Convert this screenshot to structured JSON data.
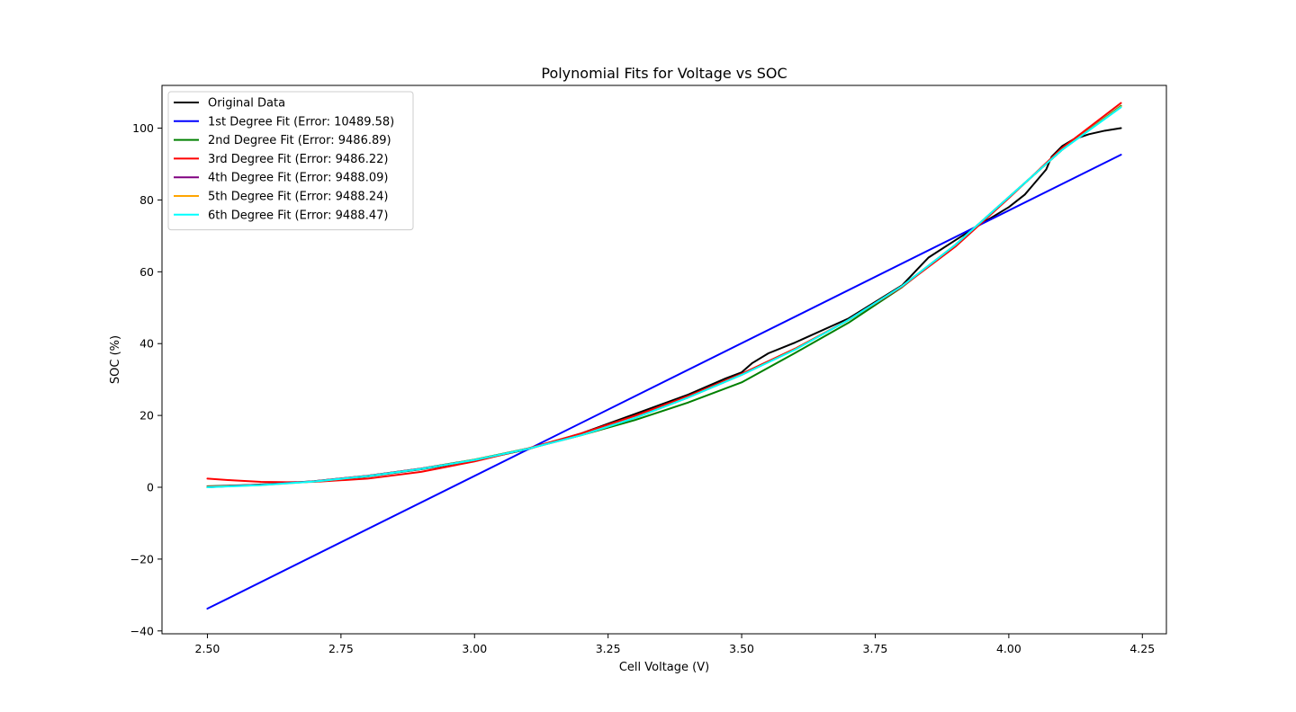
{
  "chart_data": {
    "type": "line",
    "title": "Polynomial Fits for Voltage vs SOC",
    "xlabel": "Cell Voltage (V)",
    "ylabel": "SOC (%)",
    "xlim": [
      2.415,
      4.295
    ],
    "ylim": [
      -40.8,
      111.9
    ],
    "xticks": [
      2.5,
      2.75,
      3.0,
      3.25,
      3.5,
      3.75,
      4.0,
      4.25
    ],
    "xtick_labels": [
      "2.50",
      "2.75",
      "3.00",
      "3.25",
      "3.50",
      "3.75",
      "4.00",
      "4.25"
    ],
    "yticks": [
      -40,
      -20,
      0,
      20,
      40,
      60,
      80,
      100
    ],
    "ytick_labels": [
      "−40",
      "−20",
      "0",
      "20",
      "40",
      "60",
      "80",
      "100"
    ],
    "grid": false,
    "legend_position": "top-left",
    "series": [
      {
        "name": "Original Data",
        "color": "#000000",
        "points": [
          [
            2.5,
            0.0
          ],
          [
            2.6,
            0.8
          ],
          [
            2.7,
            1.6
          ],
          [
            2.8,
            3.0
          ],
          [
            2.9,
            5.0
          ],
          [
            3.0,
            7.4
          ],
          [
            3.1,
            10.6
          ],
          [
            3.2,
            15.0
          ],
          [
            3.3,
            20.4
          ],
          [
            3.4,
            25.8
          ],
          [
            3.47,
            30.3
          ],
          [
            3.5,
            32.0
          ],
          [
            3.52,
            34.6
          ],
          [
            3.55,
            37.3
          ],
          [
            3.6,
            40.3
          ],
          [
            3.7,
            47.0
          ],
          [
            3.8,
            56.2
          ],
          [
            3.85,
            64.0
          ],
          [
            3.9,
            68.8
          ],
          [
            3.95,
            73.5
          ],
          [
            4.0,
            78.0
          ],
          [
            4.03,
            81.5
          ],
          [
            4.05,
            85.0
          ],
          [
            4.07,
            88.5
          ],
          [
            4.08,
            92.0
          ],
          [
            4.1,
            95.0
          ],
          [
            4.12,
            96.8
          ],
          [
            4.15,
            98.3
          ],
          [
            4.18,
            99.3
          ],
          [
            4.21,
            100.0
          ]
        ]
      },
      {
        "name": "1st Degree Fit (Error: 10489.58)",
        "color": "#0000ff",
        "points": [
          [
            2.5,
            -33.8
          ],
          [
            4.21,
            92.6
          ]
        ]
      },
      {
        "name": "2nd Degree Fit (Error: 9486.89)",
        "color": "#008000",
        "points": [
          [
            2.5,
            0.3
          ],
          [
            2.6,
            0.7
          ],
          [
            2.7,
            1.7
          ],
          [
            2.8,
            3.2
          ],
          [
            2.9,
            5.2
          ],
          [
            3.0,
            7.7
          ],
          [
            3.1,
            10.8
          ],
          [
            3.2,
            14.5
          ],
          [
            3.3,
            18.7
          ],
          [
            3.4,
            23.6
          ],
          [
            3.5,
            29.2
          ],
          [
            3.6,
            37.4
          ],
          [
            3.7,
            45.8
          ],
          [
            3.8,
            55.7
          ],
          [
            3.9,
            67.5
          ],
          [
            4.0,
            80.7
          ],
          [
            4.1,
            94.0
          ],
          [
            4.21,
            106.2
          ]
        ]
      },
      {
        "name": "3rd Degree Fit (Error: 9486.22)",
        "color": "#ff0000",
        "points": [
          [
            2.5,
            2.4
          ],
          [
            2.55,
            1.9
          ],
          [
            2.6,
            1.5
          ],
          [
            2.65,
            1.4
          ],
          [
            2.7,
            1.5
          ],
          [
            2.8,
            2.4
          ],
          [
            2.9,
            4.3
          ],
          [
            3.0,
            7.2
          ],
          [
            3.1,
            10.8
          ],
          [
            3.2,
            15.0
          ],
          [
            3.3,
            19.9
          ],
          [
            3.4,
            25.4
          ],
          [
            3.5,
            31.6
          ],
          [
            3.6,
            38.6
          ],
          [
            3.7,
            46.6
          ],
          [
            3.8,
            55.8
          ],
          [
            3.9,
            67.0
          ],
          [
            4.0,
            80.5
          ],
          [
            4.1,
            94.5
          ],
          [
            4.21,
            107.0
          ]
        ]
      },
      {
        "name": "4th Degree Fit (Error: 9488.09)",
        "color": "#800080",
        "points": [
          [
            2.5,
            0.2
          ],
          [
            2.6,
            0.7
          ],
          [
            2.7,
            1.7
          ],
          [
            2.8,
            3.2
          ],
          [
            2.9,
            5.2
          ],
          [
            3.0,
            7.6
          ],
          [
            3.1,
            10.7
          ],
          [
            3.2,
            14.5
          ],
          [
            3.3,
            19.3
          ],
          [
            3.4,
            25.0
          ],
          [
            3.5,
            31.3
          ],
          [
            3.6,
            38.4
          ],
          [
            3.7,
            46.6
          ],
          [
            3.8,
            56.0
          ],
          [
            3.9,
            67.5
          ],
          [
            4.0,
            80.8
          ],
          [
            4.1,
            94.0
          ],
          [
            4.21,
            106.0
          ]
        ]
      },
      {
        "name": "5th Degree Fit (Error: 9488.24)",
        "color": "#ffa500",
        "points": [
          [
            2.5,
            0.1
          ],
          [
            2.6,
            0.6
          ],
          [
            2.7,
            1.6
          ],
          [
            2.8,
            3.1
          ],
          [
            2.9,
            5.1
          ],
          [
            3.0,
            7.6
          ],
          [
            3.1,
            10.7
          ],
          [
            3.2,
            14.5
          ],
          [
            3.3,
            19.3
          ],
          [
            3.4,
            25.0
          ],
          [
            3.5,
            31.3
          ],
          [
            3.6,
            38.4
          ],
          [
            3.7,
            46.6
          ],
          [
            3.8,
            56.0
          ],
          [
            3.9,
            67.5
          ],
          [
            4.0,
            80.8
          ],
          [
            4.1,
            94.0
          ],
          [
            4.21,
            106.0
          ]
        ]
      },
      {
        "name": "6th Degree Fit (Error: 9488.47)",
        "color": "#00ffff",
        "points": [
          [
            2.5,
            0.0
          ],
          [
            2.6,
            0.6
          ],
          [
            2.7,
            1.6
          ],
          [
            2.8,
            3.1
          ],
          [
            2.9,
            5.1
          ],
          [
            3.0,
            7.6
          ],
          [
            3.1,
            10.7
          ],
          [
            3.2,
            14.5
          ],
          [
            3.3,
            19.3
          ],
          [
            3.4,
            25.0
          ],
          [
            3.5,
            31.3
          ],
          [
            3.6,
            38.3
          ],
          [
            3.7,
            46.6
          ],
          [
            3.8,
            56.0
          ],
          [
            3.9,
            67.5
          ],
          [
            4.0,
            80.8
          ],
          [
            4.1,
            94.0
          ],
          [
            4.21,
            105.8
          ]
        ]
      }
    ]
  }
}
